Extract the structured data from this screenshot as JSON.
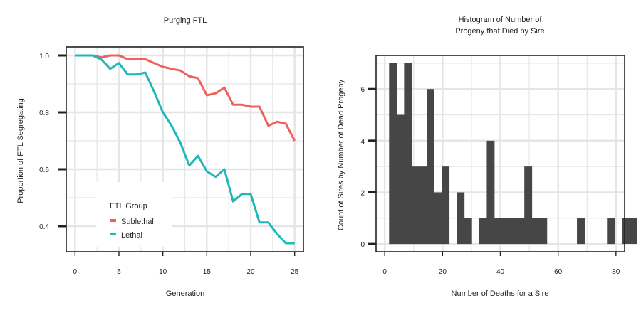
{
  "colors": {
    "sublethal": "#F0605D",
    "lethal": "#1FB8B9",
    "hist_bar": "#464646",
    "grid": "#E5E5E5",
    "axis": "#222222"
  },
  "chart_data": [
    {
      "type": "line",
      "title": "Purging FTL",
      "xlabel": "Generation",
      "ylabel": "Proportion of FTL Segregating",
      "xlim": [
        -1,
        26
      ],
      "ylim": [
        0.31,
        1.03
      ],
      "x_ticks": [
        0,
        5,
        10,
        15,
        20,
        25
      ],
      "y_ticks": [
        0.4,
        0.6,
        0.8,
        1.0
      ],
      "y_tick_labels": [
        "0.4",
        "0.6",
        "0.8",
        "1.0"
      ],
      "grid": true,
      "legend": {
        "title": "FTL Group",
        "position": "bottom-left inside"
      },
      "x": [
        0,
        1,
        2,
        3,
        4,
        5,
        6,
        7,
        8,
        9,
        10,
        11,
        12,
        13,
        14,
        15,
        16,
        17,
        18,
        19,
        20,
        21,
        22,
        23,
        24,
        25
      ],
      "series": [
        {
          "name": "Sublethal",
          "color": "#F0605D",
          "values": [
            1.0,
            1.0,
            1.0,
            0.993,
            1.0,
            1.0,
            0.987,
            0.987,
            0.987,
            0.973,
            0.96,
            0.953,
            0.947,
            0.927,
            0.92,
            0.86,
            0.867,
            0.887,
            0.827,
            0.827,
            0.82,
            0.82,
            0.753,
            0.767,
            0.76,
            0.7
          ]
        },
        {
          "name": "Lethal",
          "color": "#1FB8B9",
          "values": [
            1.0,
            1.0,
            1.0,
            0.986,
            0.953,
            0.973,
            0.933,
            0.933,
            0.94,
            0.873,
            0.8,
            0.753,
            0.693,
            0.613,
            0.647,
            0.593,
            0.573,
            0.6,
            0.487,
            0.513,
            0.513,
            0.413,
            0.413,
            0.373,
            0.34,
            0.34
          ]
        }
      ]
    },
    {
      "type": "bar",
      "title": "Histogram of Number of Progeny that Died by Sire",
      "title_lines": [
        "Histogram of Number of",
        "Progeny that Died by Sire"
      ],
      "xlabel": "Number of Deaths for a Sire",
      "ylabel": "Count of Sires by Number of Dead Progeny",
      "xlim": [
        -3,
        83
      ],
      "ylim": [
        -0.3,
        7.3
      ],
      "x_ticks": [
        0,
        20,
        40,
        60,
        80
      ],
      "y_ticks": [
        0,
        2,
        4,
        6
      ],
      "grid": true,
      "bin_width": 2.6,
      "bin_start": 1.5,
      "values": [
        7,
        5,
        7,
        3,
        3,
        6,
        2,
        3,
        0,
        2,
        1,
        0,
        1,
        4,
        1,
        1,
        1,
        1,
        3,
        1,
        1,
        0,
        0,
        0,
        0,
        1,
        0,
        0,
        0,
        1,
        0,
        1,
        1
      ]
    }
  ]
}
